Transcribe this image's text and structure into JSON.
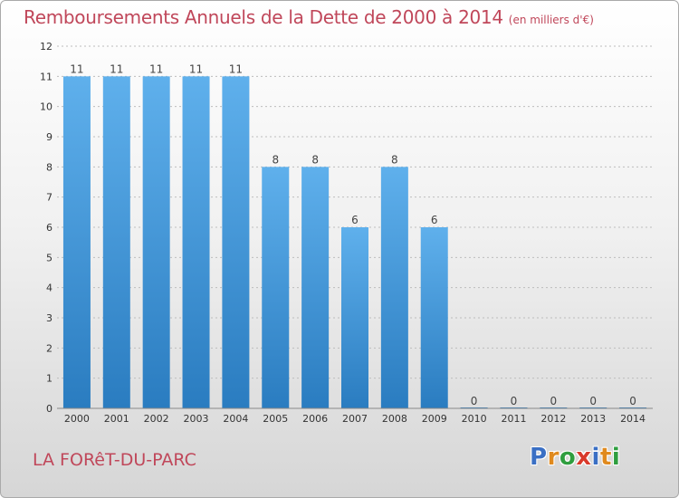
{
  "header": {
    "title": "Remboursements Annuels de la Dette de 2000 à 2014",
    "subtitle": "(en milliers d'€)"
  },
  "footer": {
    "town": "LA FORêT-DU-PARC",
    "logo_letters": [
      "P",
      "r",
      "o",
      "x",
      "i",
      "t",
      "i"
    ],
    "logo_colors": [
      "#3a6fc4",
      "#e08a1e",
      "#2f9e3f",
      "#d93a2b",
      "#3a6fc4",
      "#e08a1e",
      "#2f9e3f"
    ]
  },
  "chart_data": {
    "type": "bar",
    "title": "Remboursements Annuels de la Dette de 2000 à 2014",
    "subtitle": "(en milliers d'€)",
    "categories": [
      "2000",
      "2001",
      "2002",
      "2003",
      "2004",
      "2005",
      "2006",
      "2007",
      "2008",
      "2009",
      "2010",
      "2011",
      "2012",
      "2013",
      "2014"
    ],
    "values": [
      11,
      11,
      11,
      11,
      11,
      8,
      8,
      6,
      8,
      6,
      0,
      0,
      0,
      0,
      0
    ],
    "data_labels": [
      "11",
      "11",
      "11",
      "11",
      "11",
      "8",
      "8",
      "6",
      "8",
      "6",
      "0",
      "0",
      "0",
      "0",
      "0"
    ],
    "yticks": [
      "0",
      "1",
      "2",
      "3",
      "4",
      "5",
      "6",
      "7",
      "8",
      "9",
      "10",
      "11",
      "12"
    ],
    "ylim": [
      0,
      12
    ],
    "grid": true,
    "colors": {
      "bar_top": "#5fb0ec",
      "bar_bottom": "#2a7cc0",
      "grid": "#bdbdbd",
      "axis_text": "#333333"
    }
  }
}
